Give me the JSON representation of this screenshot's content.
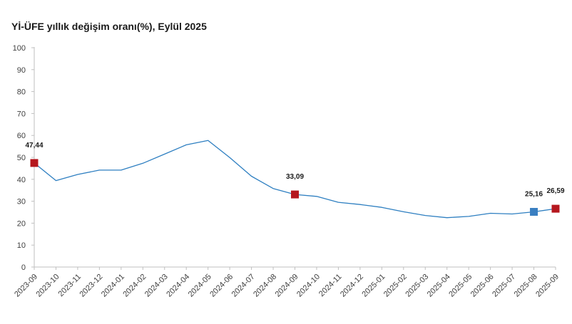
{
  "chart_data": {
    "type": "line",
    "title": "Yİ-ÜFE yıllık değişim oranı(%), Eylül 2025",
    "xlabel": "",
    "ylabel": "",
    "ylim": [
      0,
      100
    ],
    "yticks": [
      "0",
      "10",
      "20",
      "30",
      "40",
      "50",
      "60",
      "70",
      "80",
      "90",
      "100"
    ],
    "grid": false,
    "categories": [
      "2023-09",
      "2023-10",
      "2023-11",
      "2023-12",
      "2024-01",
      "2024-02",
      "2024-03",
      "2024-04",
      "2024-05",
      "2024-06",
      "2024-07",
      "2024-08",
      "2024-09",
      "2024-10",
      "2024-11",
      "2024-12",
      "2025-01",
      "2025-02",
      "2025-03",
      "2025-04",
      "2025-05",
      "2025-06",
      "2025-07",
      "2025-08",
      "2025-09"
    ],
    "series": [
      {
        "values": [
          47.44,
          39.4,
          42.2,
          44.2,
          44.2,
          47.3,
          51.5,
          55.7,
          57.7,
          49.9,
          41.4,
          35.8,
          33.09,
          32.2,
          29.5,
          28.5,
          27.2,
          25.2,
          23.5,
          22.5,
          23.1,
          24.5,
          24.2,
          25.16,
          26.59
        ],
        "color": "#2e7fc1"
      }
    ],
    "highlights": [
      {
        "index": 0,
        "label": "47,44",
        "color": "#b5171e"
      },
      {
        "index": 12,
        "label": "33,09",
        "color": "#b5171e"
      },
      {
        "index": 23,
        "label": "25,16",
        "color": "#3a7fc1"
      },
      {
        "index": 24,
        "label": "26,59",
        "color": "#b5171e"
      }
    ]
  }
}
